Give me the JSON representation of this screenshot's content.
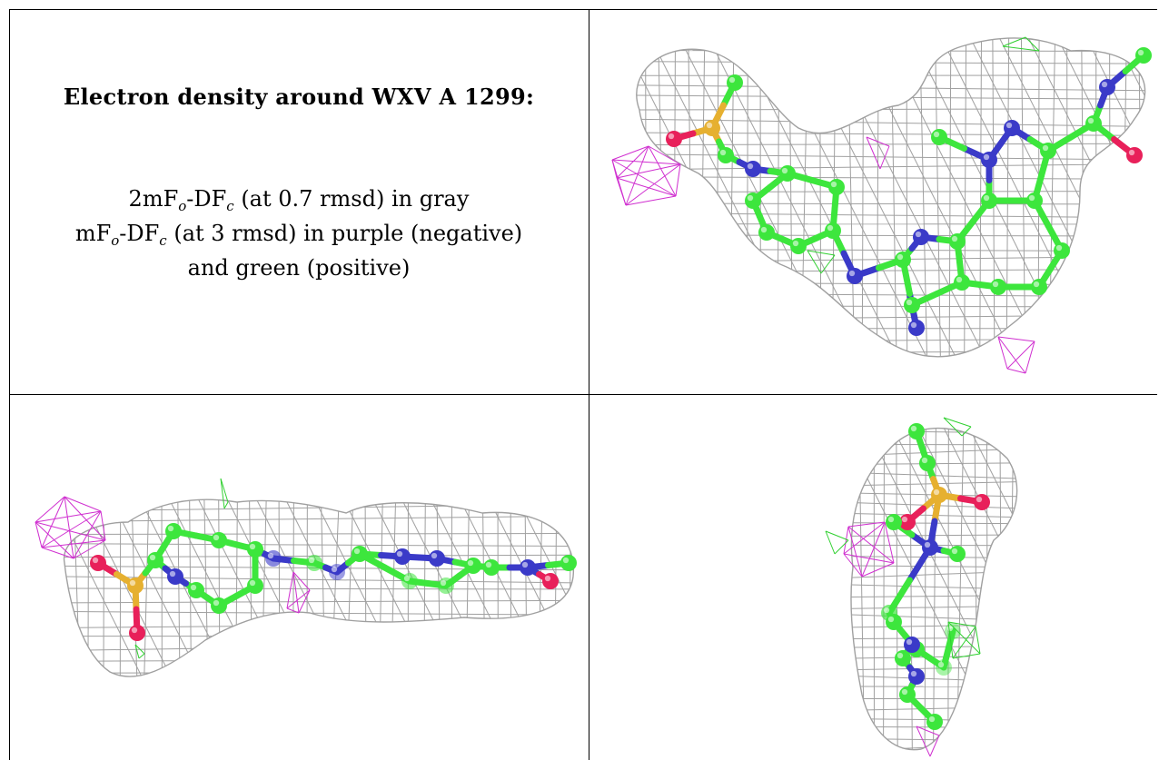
{
  "caption": {
    "title": "Electron density around WXV A 1299:",
    "line1": {
      "a": "2mF",
      "b": "o",
      "c": "-DF",
      "d": "c",
      "e": " (at 0.7 rmsd) in gray"
    },
    "line2": {
      "a": "mF",
      "b": "o",
      "c": "-DF",
      "d": "c",
      "e": " (at 3 rmsd) in purple (negative)"
    },
    "line3": "and green (positive)"
  },
  "colors": {
    "mesh": "#a0a0a0",
    "carbon": "#3de63d",
    "nitrogen": "#3a3ac8",
    "oxygen": "#e8205a",
    "sulfur": "#e6b030",
    "negative_density": "#d030d0",
    "positive_density": "#30d030"
  },
  "panels": [
    {
      "view": "top-right",
      "content": "ligand-view-1"
    },
    {
      "view": "bottom-left",
      "content": "ligand-view-2"
    },
    {
      "view": "bottom-right",
      "content": "ligand-view-3"
    }
  ]
}
